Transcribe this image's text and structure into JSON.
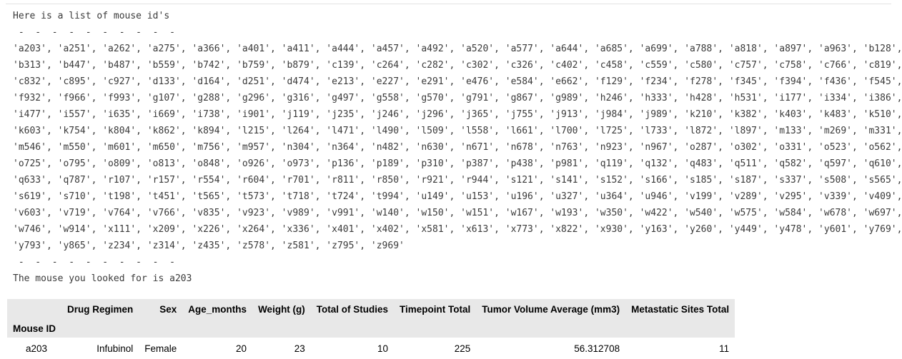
{
  "output": {
    "intro": "Here is a list of mouse id's",
    "separator": " -  -  -  -  -  -  -  -  -  -",
    "id_lines": [
      "'a203', 'a251', 'a262', 'a275', 'a366', 'a401', 'a411', 'a444', 'a457', 'a492', 'a520', 'a577', 'a644', 'a685', 'a699', 'a788', 'a818', 'a897', 'a963', 'b128',",
      "'b313', 'b447', 'b487', 'b559', 'b742', 'b759', 'b879', 'c139', 'c264', 'c282', 'c302', 'c326', 'c402', 'c458', 'c559', 'c580', 'c757', 'c758', 'c766', 'c819',",
      "'c832', 'c895', 'c927', 'd133', 'd164', 'd251', 'd474', 'e213', 'e227', 'e291', 'e476', 'e584', 'e662', 'f129', 'f234', 'f278', 'f345', 'f394', 'f436', 'f545',",
      "'f932', 'f966', 'f993', 'g107', 'g288', 'g296', 'g316', 'g497', 'g558', 'g570', 'g791', 'g867', 'g989', 'h246', 'h333', 'h428', 'h531', 'i177', 'i334', 'i386',",
      "'i477', 'i557', 'i635', 'i669', 'i738', 'i901', 'j119', 'j235', 'j246', 'j296', 'j365', 'j755', 'j913', 'j984', 'j989', 'k210', 'k382', 'k403', 'k483', 'k510',",
      "'k603', 'k754', 'k804', 'k862', 'k894', 'l215', 'l264', 'l471', 'l490', 'l509', 'l558', 'l661', 'l700', 'l725', 'l733', 'l872', 'l897', 'm133', 'm269', 'm331',",
      "'m546', 'm550', 'm601', 'm650', 'm756', 'm957', 'n304', 'n364', 'n482', 'n630', 'n671', 'n678', 'n763', 'n923', 'n967', 'o287', 'o302', 'o331', 'o523', 'o562',",
      "'o725', 'o795', 'o809', 'o813', 'o848', 'o926', 'o973', 'p136', 'p189', 'p310', 'p387', 'p438', 'p981', 'q119', 'q132', 'q483', 'q511', 'q582', 'q597', 'q610',",
      "'q633', 'q787', 'r107', 'r157', 'r554', 'r604', 'r701', 'r811', 'r850', 'r921', 'r944', 's121', 's141', 's152', 's166', 's185', 's187', 's337', 's508', 's565',",
      "'s619', 's710', 't198', 't451', 't565', 't573', 't718', 't724', 't994', 'u149', 'u153', 'u196', 'u327', 'u364', 'u946', 'v199', 'v289', 'v295', 'v339', 'v409',",
      "'v603', 'v719', 'v764', 'v766', 'v835', 'v923', 'v989', 'v991', 'w140', 'w150', 'w151', 'w167', 'w193', 'w350', 'w422', 'w540', 'w575', 'w584', 'w678', 'w697',",
      "'w746', 'w914', 'x111', 'x209', 'x226', 'x264', 'x336', 'x401', 'x402', 'x581', 'x613', 'x773', 'x822', 'x930', 'y163', 'y260', 'y449', 'y478', 'y601', 'y769',",
      "'y793', 'y865', 'z234', 'z314', 'z435', 'z578', 'z581', 'z795', 'z969'"
    ],
    "result": "The mouse you looked for is a203"
  },
  "table": {
    "columns": [
      "Drug Regimen",
      "Sex",
      "Age_months",
      "Weight (g)",
      "Total of Studies",
      "Timepoint Total",
      "Tumor Volume Average (mm3)",
      "Metastatic Sites Total"
    ],
    "index_name": "Mouse ID",
    "rows": [
      {
        "index": "a203",
        "values": [
          "Infubinol",
          "Female",
          "20",
          "23",
          "10",
          "225",
          "56.312708",
          "11"
        ]
      }
    ]
  }
}
